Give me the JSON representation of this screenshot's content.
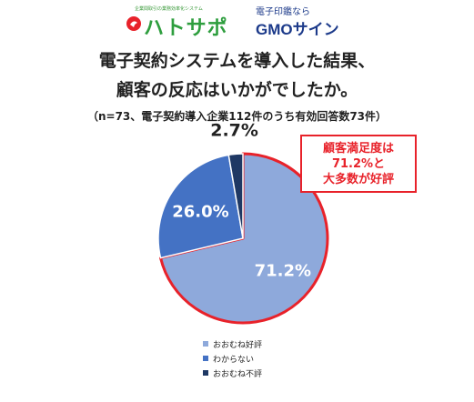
{
  "logos": {
    "hatosapo": {
      "tagline": "企業間取引の業務効率化システム",
      "name": "ハトサポ"
    },
    "gmo": {
      "tagline": "電子印鑑なら",
      "name": "GMOサイン"
    }
  },
  "title_line1": "電子契約システムを導入した結果、",
  "title_line2": "顧客の反応はいかがでしたか。",
  "subtitle": "（n=73、電子契約導入企業112件のうち有効回答数73件）",
  "callout": {
    "line1": "顧客満足度は",
    "line2": "71.2%と",
    "line3": "大多数が好評"
  },
  "chart_data": {
    "type": "pie",
    "categories": [
      "おおむね好評",
      "わからない",
      "おおむね不評"
    ],
    "values": [
      71.2,
      26.0,
      2.7
    ],
    "labels": [
      "71.2%",
      "26.0%",
      "2.7%"
    ],
    "colors": [
      "#8ea9db",
      "#4472c4",
      "#1f3864"
    ],
    "highlight_color": "#e8222a",
    "legend_position": "bottom"
  }
}
